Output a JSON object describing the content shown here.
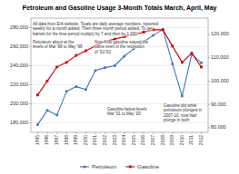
{
  "chart_data": {
    "type": "line",
    "title": "Petroleum and Gasoline Usage 3-Month Totals March, April, May",
    "x": [
      1995,
      1996,
      1997,
      1998,
      1999,
      2000,
      2001,
      2002,
      2003,
      2004,
      2005,
      2006,
      2007,
      2008,
      2009,
      2010,
      2011,
      2012
    ],
    "series": [
      {
        "name": "Petroleum",
        "color": "#4472C4",
        "marker": "circle",
        "values": [
          178000,
          193000,
          188000,
          213000,
          218000,
          215000,
          235000,
          238000,
          240000,
          250000,
          258000,
          265000,
          272000,
          278000,
          242000,
          208000,
          252000,
          243000
        ]
      },
      {
        "name": "Gasoline",
        "color": "#CC0000",
        "marker": "square",
        "axis": "y2",
        "values": [
          94000,
          100000,
          106000,
          108000,
          111000,
          113000,
          115000,
          117000,
          118000,
          119000,
          120000,
          121000,
          122000,
          122000,
          115000,
          108000,
          112000,
          106000
        ]
      }
    ],
    "xlim": [
      1994.3,
      2012.7
    ],
    "xticks": [
      1995,
      1996,
      1997,
      1998,
      1999,
      2000,
      2001,
      2002,
      2003,
      2004,
      2005,
      2006,
      2007,
      2008,
      2009,
      2010,
      2011,
      2012
    ],
    "ylim": [
      170000,
      290000
    ],
    "yticks": [
      {
        "value": 180000,
        "label": "180,000"
      },
      {
        "value": 200000,
        "label": "200,000"
      },
      {
        "value": 220000,
        "label": "220,000"
      },
      {
        "value": 240000,
        "label": "240,000"
      },
      {
        "value": 260000,
        "label": "260,000"
      },
      {
        "value": 280000,
        "label": "280,000"
      }
    ],
    "y2lim": [
      78000,
      127000
    ],
    "y2ticks": [
      {
        "value": 80000,
        "label": "80,000"
      },
      {
        "value": 90000,
        "label": "90,000"
      },
      {
        "value": 100000,
        "label": "100,000"
      },
      {
        "value": 110000,
        "label": "110,000"
      },
      {
        "value": 120000,
        "label": "120,000"
      }
    ],
    "grid": true,
    "legend": "bottom",
    "annotations": [
      "All data from EIA website. Totals are daily average numbers, reported\nweekly for a month added. Then three month period added. To get\nbarrels for the time period multiply by 7 and then by 1,000.",
      "Note how gasoline stayed the\nsame even in the recession\nof '01/'02",
      "Gasoline below levels\nMar '01 to May '00",
      "Gasoline did while\npetroleum plunged in\n2007-10, now had\nplunge in both",
      "Petroleum about at the\nlevels of Mar '98 to May '98"
    ]
  }
}
